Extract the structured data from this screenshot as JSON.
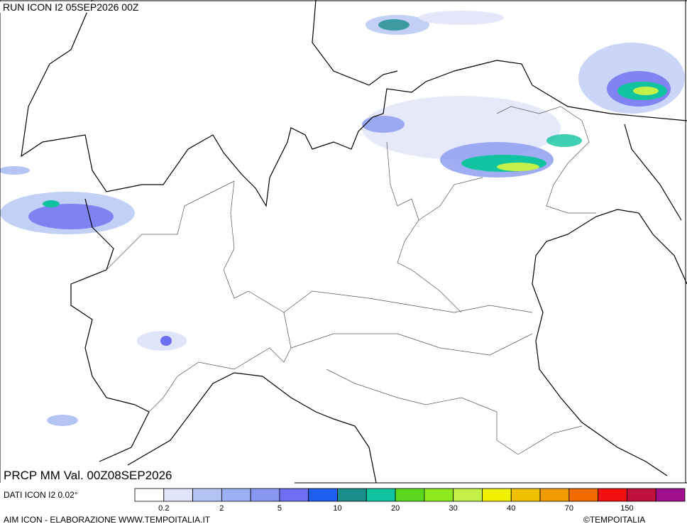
{
  "header": {
    "title": "RUN ICON I2 05SEP2026 00Z",
    "validity": "PRCP MM Val. 00Z08SEP2026"
  },
  "legend": {
    "colors": [
      "#ffffff",
      "#e0e4f8",
      "#b4c4f4",
      "#9cb0f4",
      "#8898f0",
      "#6e6ef0",
      "#1e5ef0",
      "#1a8c8c",
      "#10c4a0",
      "#5ad81e",
      "#8ee81e",
      "#c4f04a",
      "#f0f000",
      "#f0c000",
      "#f09c00",
      "#f06c00",
      "#f01010",
      "#c0103c",
      "#a0108c"
    ],
    "labels": [
      "0.2",
      "2",
      "5",
      "10",
      "20",
      "30",
      "40",
      "70",
      "150"
    ]
  },
  "footer": {
    "source": "DATI ICON I2 0.02°",
    "credits": "AIM ICON - ELABORAZIONE WWW.TEMPOITALIA.IT",
    "copyright": "©TEMPOITALIA"
  }
}
